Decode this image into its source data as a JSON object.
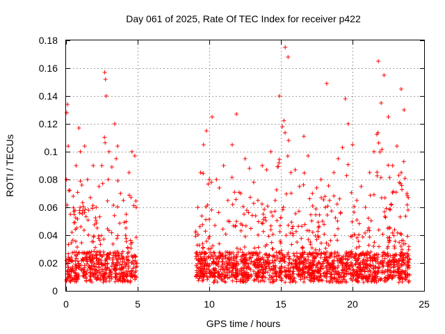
{
  "chart_data": {
    "type": "scatter",
    "title": "Day 061 of 2025, Rate Of TEC Index for receiver p422",
    "xlabel": "GPS time / hours",
    "ylabel": "ROTI / TECUs",
    "xlim": [
      0,
      25
    ],
    "ylim": [
      0,
      0.18
    ],
    "grid": true,
    "marker": "+",
    "color": "#ff0000",
    "x_ticks": [
      0,
      5,
      10,
      15,
      20,
      25
    ],
    "x_tick_labels": [
      "0",
      "5",
      "10",
      "15",
      "20",
      "25"
    ],
    "y_ticks": [
      0,
      0.02,
      0.04,
      0.06,
      0.08,
      0.1,
      0.12,
      0.14,
      0.16,
      0.18
    ],
    "y_tick_labels": [
      "0",
      "0.02",
      "0.04",
      "0.06",
      "0.08",
      "0.1",
      "0.12",
      "0.14",
      "0.16",
      "0.18"
    ],
    "data_gap_hours": [
      4.95,
      9.05
    ],
    "series": [
      {
        "name": "ROTI",
        "x": [
          0.05,
          0.1,
          0.15,
          0.2,
          0.3,
          0.5,
          0.7,
          0.9,
          1.0,
          1.1,
          1.3,
          1.5,
          1.7,
          1.9,
          2.1,
          2.3,
          2.5,
          2.7,
          2.75,
          2.8,
          3.0,
          3.2,
          3.4,
          3.5,
          3.6,
          3.8,
          4.0,
          4.2,
          4.4,
          4.6,
          4.8,
          4.9,
          9.2,
          9.4,
          9.6,
          9.8,
          10.0,
          10.2,
          10.5,
          10.7,
          11.0,
          11.3,
          11.6,
          11.9,
          12.2,
          12.5,
          12.8,
          13.1,
          13.4,
          13.7,
          14.0,
          14.3,
          14.6,
          14.9,
          15.1,
          15.3,
          15.5,
          15.7,
          16.0,
          16.3,
          16.6,
          16.9,
          17.2,
          17.5,
          17.8,
          18.1,
          18.2,
          18.4,
          18.7,
          19.0,
          19.3,
          19.5,
          19.7,
          20.0,
          20.3,
          20.6,
          20.9,
          21.2,
          21.5,
          21.8,
          22.0,
          22.2,
          22.5,
          22.8,
          23.1,
          23.4,
          23.6,
          23.8,
          23.9
        ],
        "y": [
          0.128,
          0.134,
          0.104,
          0.072,
          0.055,
          0.068,
          0.09,
          0.117,
          0.1,
          0.076,
          0.104,
          0.08,
          0.067,
          0.09,
          0.06,
          0.075,
          0.09,
          0.157,
          0.152,
          0.14,
          0.1,
          0.089,
          0.12,
          0.095,
          0.104,
          0.07,
          0.065,
          0.055,
          0.085,
          0.1,
          0.097,
          0.06,
          0.06,
          0.085,
          0.105,
          0.115,
          0.08,
          0.125,
          0.08,
          0.074,
          0.09,
          0.065,
          0.105,
          0.127,
          0.07,
          0.095,
          0.088,
          0.078,
          0.065,
          0.09,
          0.087,
          0.1,
          0.065,
          0.14,
          0.118,
          0.175,
          0.168,
          0.085,
          0.087,
          0.075,
          0.111,
          0.097,
          0.07,
          0.074,
          0.08,
          0.06,
          0.149,
          0.065,
          0.085,
          0.095,
          0.103,
          0.138,
          0.12,
          0.105,
          0.065,
          0.075,
          0.06,
          0.085,
          0.1,
          0.165,
          0.135,
          0.155,
          0.125,
          0.09,
          0.104,
          0.145,
          0.13,
          0.07,
          0.067
        ]
      }
    ]
  }
}
